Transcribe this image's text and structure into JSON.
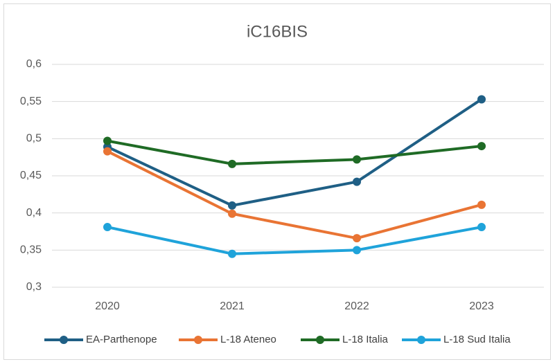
{
  "chart_data": {
    "type": "line",
    "title": "iC16BIS",
    "categories": [
      "2020",
      "2021",
      "2022",
      "2023"
    ],
    "series": [
      {
        "name": "EA-Parthenope",
        "color": "#1f5f85",
        "values": [
          0.489,
          0.41,
          0.442,
          0.553
        ]
      },
      {
        "name": "L-18 Ateneo",
        "color": "#e97434",
        "values": [
          0.483,
          0.399,
          0.366,
          0.411
        ]
      },
      {
        "name": "L-18 Italia",
        "color": "#1f6b25",
        "values": [
          0.497,
          0.466,
          0.472,
          0.49
        ]
      },
      {
        "name": "L-18 Sud Italia",
        "color": "#1fa3da",
        "values": [
          0.381,
          0.345,
          0.35,
          0.381
        ]
      }
    ],
    "ylim": [
      0.3,
      0.6
    ],
    "yticks": [
      {
        "value": 0.3,
        "label": "0,3"
      },
      {
        "value": 0.35,
        "label": "0,35"
      },
      {
        "value": 0.4,
        "label": "0,4"
      },
      {
        "value": 0.45,
        "label": "0,45"
      },
      {
        "value": 0.5,
        "label": "0,5"
      },
      {
        "value": 0.55,
        "label": "0,55"
      },
      {
        "value": 0.6,
        "label": "0,6"
      }
    ],
    "grid": true,
    "legend": "bottom"
  }
}
